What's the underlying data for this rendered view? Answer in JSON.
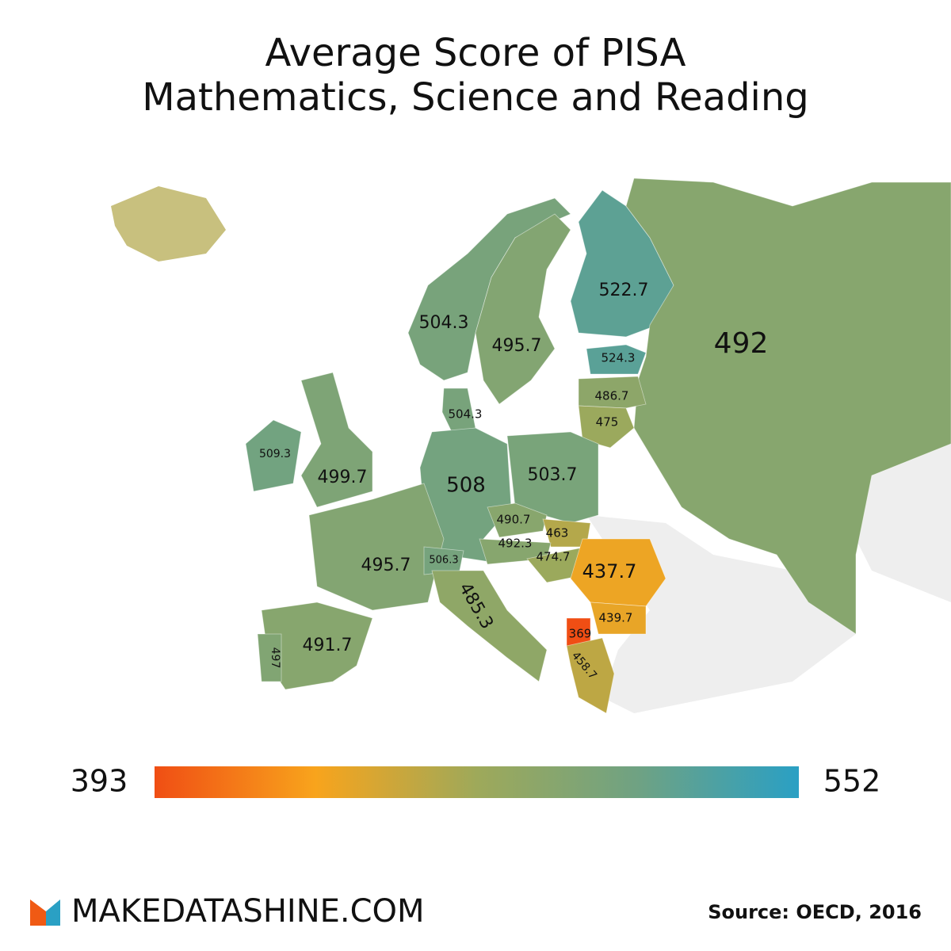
{
  "title": [
    "Average Score of PISA",
    "Mathematics, Science and Reading"
  ],
  "regions": [
    {
      "value": 504.3
    },
    {
      "value": 495.7
    },
    {
      "value": 522.7
    },
    {
      "value": 492
    },
    {
      "value": 524.3
    },
    {
      "value": 486.7
    },
    {
      "value": 475
    },
    {
      "value": 504.3
    },
    {
      "value": 509.3
    },
    {
      "value": 499.7
    },
    {
      "value": 508
    },
    {
      "value": 503.7
    },
    {
      "value": 490.7
    },
    {
      "value": 463
    },
    {
      "value": 492.3
    },
    {
      "value": 474.7
    },
    {
      "value": 437.7
    },
    {
      "value": 495.7
    },
    {
      "value": 506.3
    },
    {
      "value": 485.3
    },
    {
      "value": 439.7
    },
    {
      "value": 369
    },
    {
      "value": 458.7
    },
    {
      "value": 491.7
    },
    {
      "value": 497
    }
  ],
  "scale": {
    "min": 393,
    "max": 552,
    "colors": [
      "#f04e14",
      "#f8a41c",
      "#9ea95a",
      "#6fa283",
      "#2aa0c4"
    ]
  },
  "brand": "MAKEDATASHINE.COM",
  "source": "Source: OECD, 2016"
}
